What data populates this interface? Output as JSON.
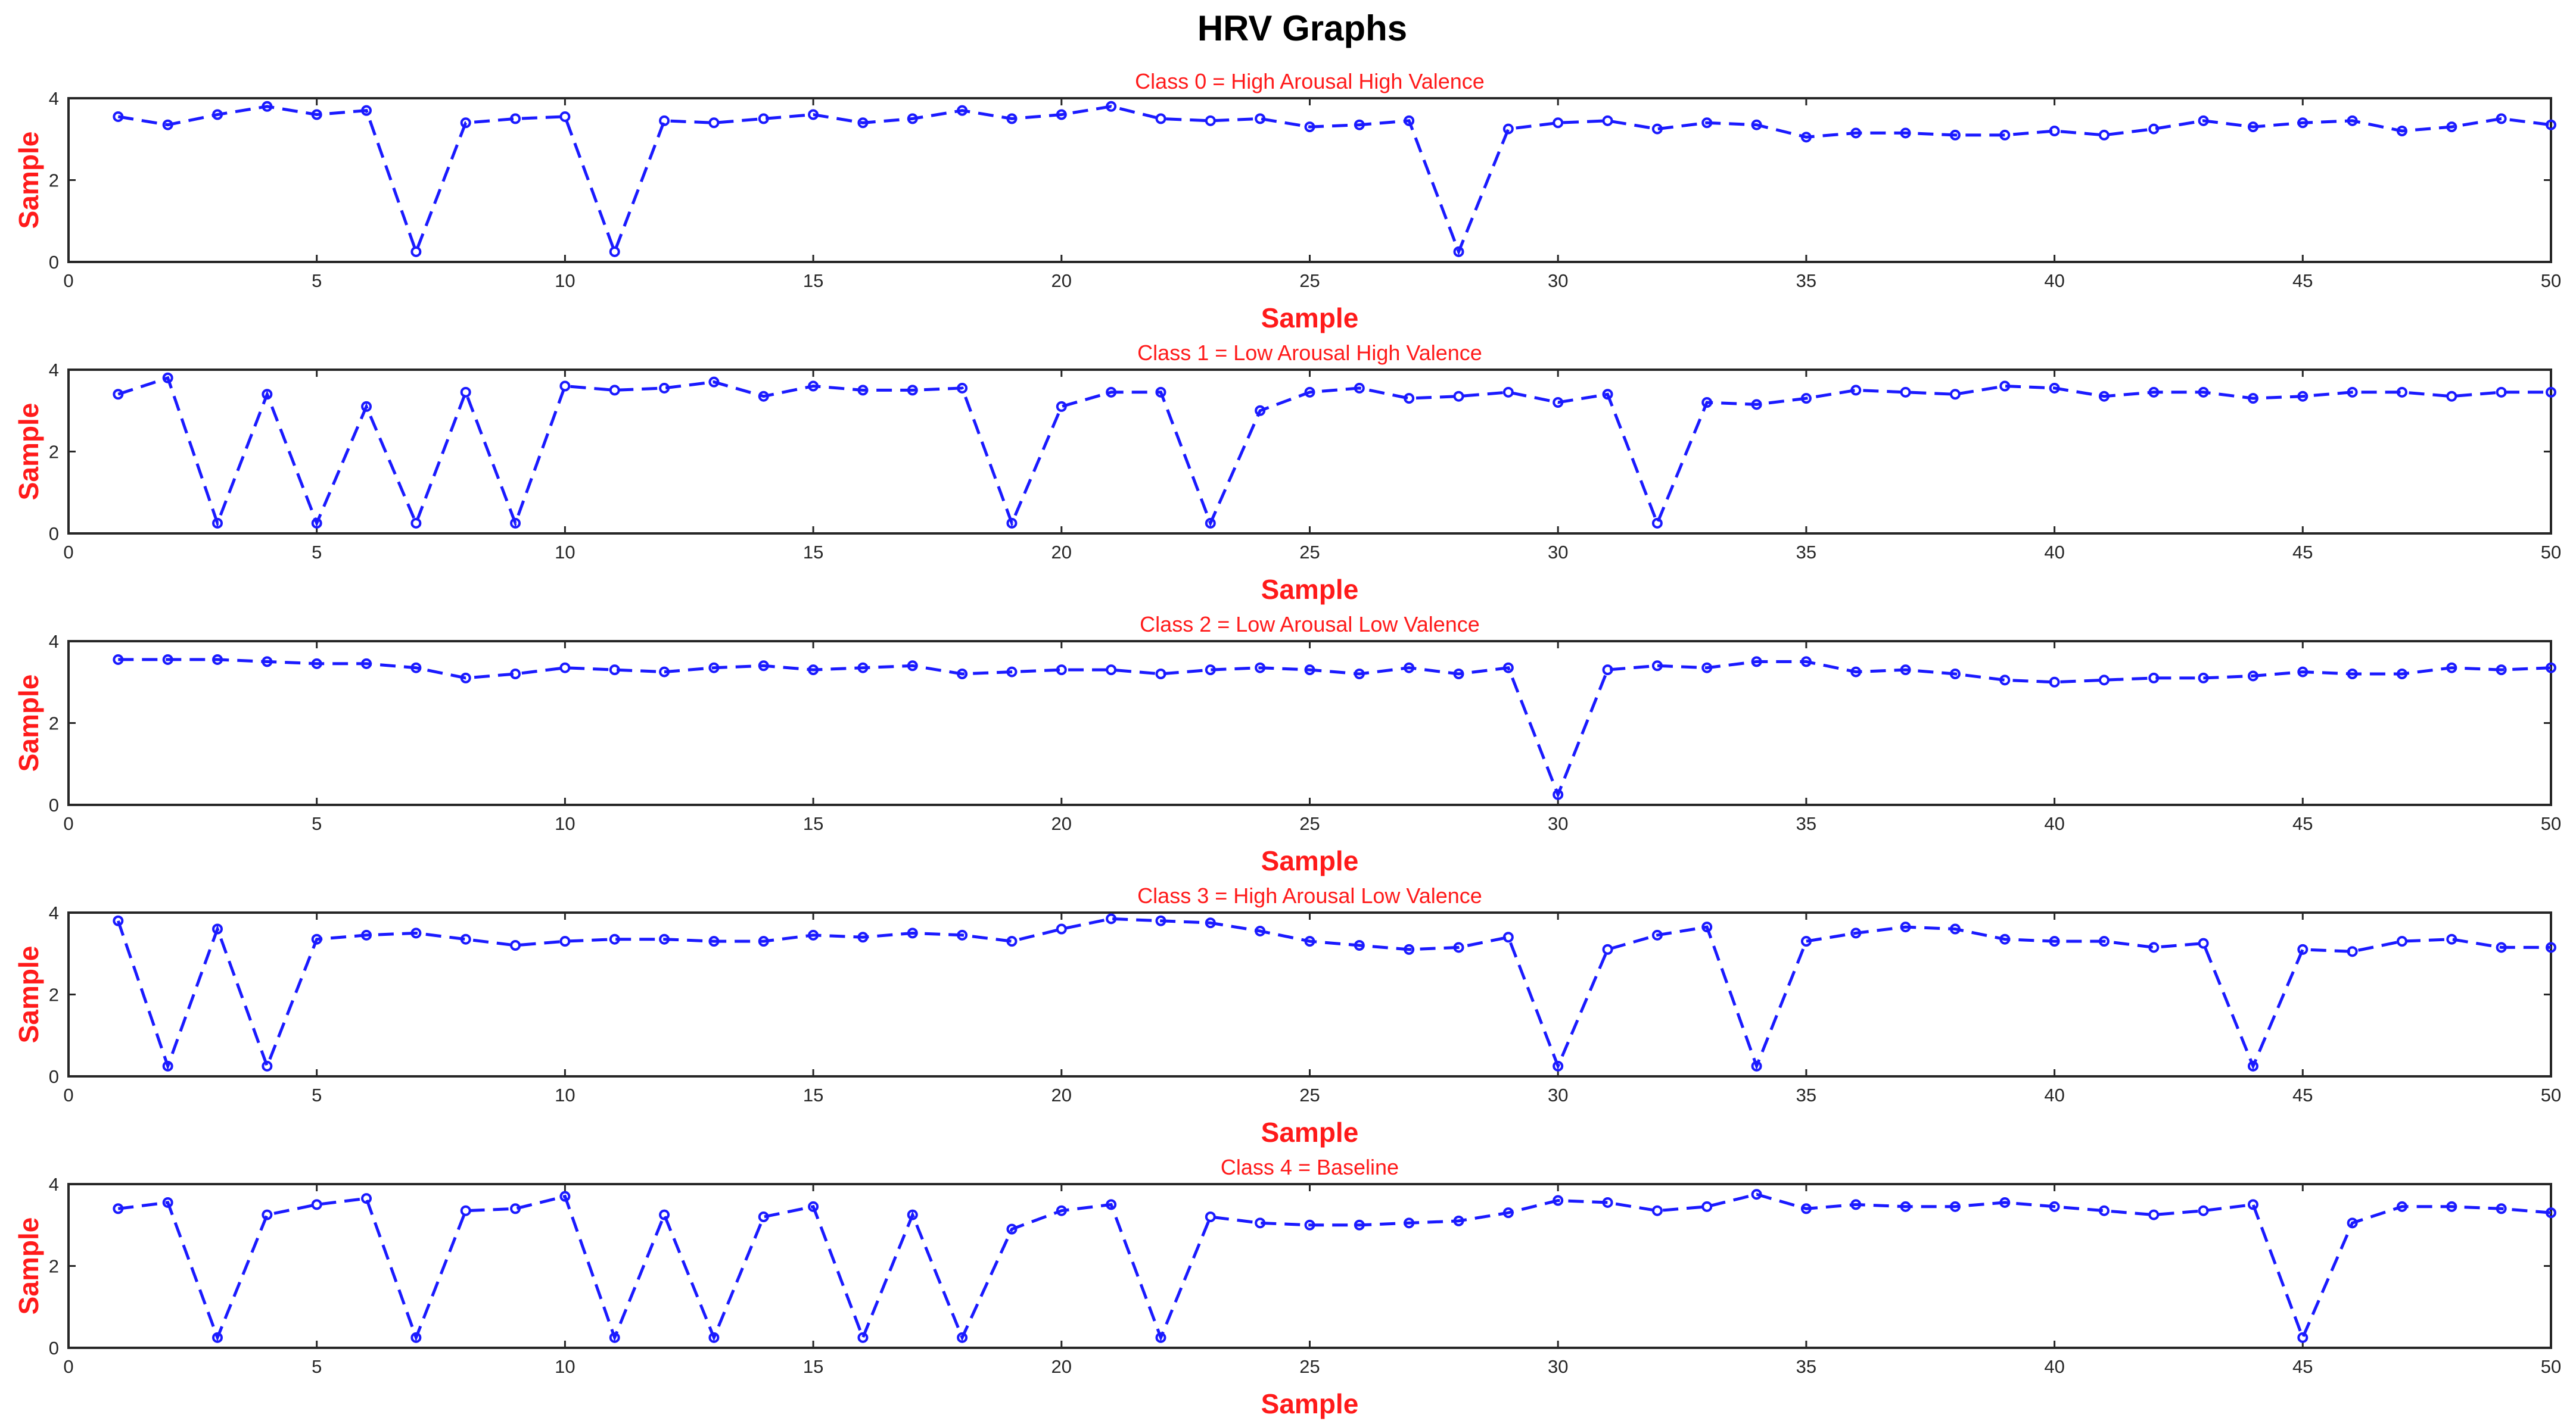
{
  "figure_title": "HRV Graphs",
  "colors": {
    "series": "#1a1aff",
    "axis_text": "#ff1a1a",
    "axes": "#262626"
  },
  "chart_data": [
    {
      "type": "line",
      "title": "Class 0 = High Arousal High Valence",
      "xlabel": "Sample",
      "ylabel": "Sample",
      "xlim": [
        0,
        50
      ],
      "ylim": [
        0,
        4
      ],
      "xticks": [
        0,
        5,
        10,
        15,
        20,
        25,
        30,
        35,
        40,
        45,
        50
      ],
      "yticks": [
        0,
        2,
        4
      ],
      "grid": false,
      "marker": "circle",
      "line_style": "dashed",
      "x": [
        1,
        2,
        3,
        4,
        5,
        6,
        7,
        8,
        9,
        10,
        11,
        12,
        13,
        14,
        15,
        16,
        17,
        18,
        19,
        20,
        21,
        22,
        23,
        24,
        25,
        26,
        27,
        28,
        29,
        30,
        31,
        32,
        33,
        34,
        35,
        36,
        37,
        38,
        39,
        40,
        41,
        42,
        43,
        44,
        45,
        46,
        47,
        48,
        49,
        50
      ],
      "y": [
        3.55,
        3.35,
        3.6,
        3.8,
        3.6,
        3.7,
        0.25,
        3.4,
        3.5,
        3.55,
        0.25,
        3.45,
        3.4,
        3.5,
        3.6,
        3.4,
        3.5,
        3.7,
        3.5,
        3.6,
        3.8,
        3.5,
        3.45,
        3.5,
        3.3,
        3.35,
        3.45,
        0.25,
        3.25,
        3.4,
        3.45,
        3.25,
        3.4,
        3.35,
        3.05,
        3.15,
        3.15,
        3.1,
        3.1,
        3.2,
        3.1,
        3.25,
        3.45,
        3.3,
        3.4,
        3.45,
        3.2,
        3.3,
        3.5,
        3.35
      ]
    },
    {
      "type": "line",
      "title": "Class 1 = Low Arousal High Valence",
      "xlabel": "Sample",
      "ylabel": "Sample",
      "xlim": [
        0,
        50
      ],
      "ylim": [
        0,
        4
      ],
      "xticks": [
        0,
        5,
        10,
        15,
        20,
        25,
        30,
        35,
        40,
        45,
        50
      ],
      "yticks": [
        0,
        2,
        4
      ],
      "grid": false,
      "marker": "circle",
      "line_style": "dashed",
      "x": [
        1,
        2,
        3,
        4,
        5,
        6,
        7,
        8,
        9,
        10,
        11,
        12,
        13,
        14,
        15,
        16,
        17,
        18,
        19,
        20,
        21,
        22,
        23,
        24,
        25,
        26,
        27,
        28,
        29,
        30,
        31,
        32,
        33,
        34,
        35,
        36,
        37,
        38,
        39,
        40,
        41,
        42,
        43,
        44,
        45,
        46,
        47,
        48,
        49,
        50
      ],
      "y": [
        3.4,
        3.8,
        0.25,
        3.4,
        0.25,
        3.1,
        0.25,
        3.45,
        0.25,
        3.6,
        3.5,
        3.55,
        3.7,
        3.35,
        3.6,
        3.5,
        3.5,
        3.55,
        0.25,
        3.1,
        3.45,
        3.45,
        0.25,
        3.0,
        3.45,
        3.55,
        3.3,
        3.35,
        3.45,
        3.2,
        3.4,
        0.25,
        3.2,
        3.15,
        3.3,
        3.5,
        3.45,
        3.4,
        3.6,
        3.55,
        3.35,
        3.45,
        3.45,
        3.3,
        3.35,
        3.45,
        3.45,
        3.35,
        3.45,
        3.45
      ]
    },
    {
      "type": "line",
      "title": "Class 2 = Low Arousal Low Valence",
      "xlabel": "Sample",
      "ylabel": "Sample",
      "xlim": [
        0,
        50
      ],
      "ylim": [
        0,
        4
      ],
      "xticks": [
        0,
        5,
        10,
        15,
        20,
        25,
        30,
        35,
        40,
        45,
        50
      ],
      "yticks": [
        0,
        2,
        4
      ],
      "grid": false,
      "marker": "circle",
      "line_style": "dashed",
      "x": [
        1,
        2,
        3,
        4,
        5,
        6,
        7,
        8,
        9,
        10,
        11,
        12,
        13,
        14,
        15,
        16,
        17,
        18,
        19,
        20,
        21,
        22,
        23,
        24,
        25,
        26,
        27,
        28,
        29,
        30,
        31,
        32,
        33,
        34,
        35,
        36,
        37,
        38,
        39,
        40,
        41,
        42,
        43,
        44,
        45,
        46,
        47,
        48,
        49,
        50
      ],
      "y": [
        3.55,
        3.55,
        3.55,
        3.5,
        3.45,
        3.45,
        3.35,
        3.1,
        3.2,
        3.35,
        3.3,
        3.25,
        3.35,
        3.4,
        3.3,
        3.35,
        3.4,
        3.2,
        3.25,
        3.3,
        3.3,
        3.2,
        3.3,
        3.35,
        3.3,
        3.2,
        3.35,
        3.2,
        3.35,
        0.25,
        3.3,
        3.4,
        3.35,
        3.5,
        3.5,
        3.25,
        3.3,
        3.2,
        3.05,
        3.0,
        3.05,
        3.1,
        3.1,
        3.15,
        3.25,
        3.2,
        3.2,
        3.35,
        3.3,
        3.35
      ]
    },
    {
      "type": "line",
      "title": "Class 3 = High Arousal Low Valence",
      "xlabel": "Sample",
      "ylabel": "Sample",
      "xlim": [
        0,
        50
      ],
      "ylim": [
        0,
        4
      ],
      "xticks": [
        0,
        5,
        10,
        15,
        20,
        25,
        30,
        35,
        40,
        45,
        50
      ],
      "yticks": [
        0,
        2,
        4
      ],
      "grid": false,
      "marker": "circle",
      "line_style": "dashed",
      "x": [
        1,
        2,
        3,
        4,
        5,
        6,
        7,
        8,
        9,
        10,
        11,
        12,
        13,
        14,
        15,
        16,
        17,
        18,
        19,
        20,
        21,
        22,
        23,
        24,
        25,
        26,
        27,
        28,
        29,
        30,
        31,
        32,
        33,
        34,
        35,
        36,
        37,
        38,
        39,
        40,
        41,
        42,
        43,
        44,
        45,
        46,
        47,
        48,
        49,
        50
      ],
      "y": [
        3.8,
        0.25,
        3.6,
        0.25,
        3.35,
        3.45,
        3.5,
        3.35,
        3.2,
        3.3,
        3.35,
        3.35,
        3.3,
        3.3,
        3.45,
        3.4,
        3.5,
        3.45,
        3.3,
        3.6,
        3.85,
        3.8,
        3.75,
        3.55,
        3.3,
        3.2,
        3.1,
        3.15,
        3.4,
        0.25,
        3.1,
        3.45,
        3.65,
        0.25,
        3.3,
        3.5,
        3.65,
        3.6,
        3.35,
        3.3,
        3.3,
        3.15,
        3.25,
        0.25,
        3.1,
        3.05,
        3.3,
        3.35,
        3.15,
        3.15
      ]
    },
    {
      "type": "line",
      "title": "Class 4 = Baseline",
      "xlabel": "Sample",
      "ylabel": "Sample",
      "xlim": [
        0,
        50
      ],
      "ylim": [
        0,
        4
      ],
      "xticks": [
        0,
        5,
        10,
        15,
        20,
        25,
        30,
        35,
        40,
        45,
        50
      ],
      "yticks": [
        0,
        2,
        4
      ],
      "grid": false,
      "marker": "circle",
      "line_style": "dashed",
      "x": [
        1,
        2,
        3,
        4,
        5,
        6,
        7,
        8,
        9,
        10,
        11,
        12,
        13,
        14,
        15,
        16,
        17,
        18,
        19,
        20,
        21,
        22,
        23,
        24,
        25,
        26,
        27,
        28,
        29,
        30,
        31,
        32,
        33,
        34,
        35,
        36,
        37,
        38,
        39,
        40,
        41,
        42,
        43,
        44,
        45,
        46,
        47,
        48,
        49,
        50
      ],
      "y": [
        3.4,
        3.55,
        0.25,
        3.25,
        3.5,
        3.65,
        0.25,
        3.35,
        3.4,
        3.7,
        0.25,
        3.25,
        0.25,
        3.2,
        3.45,
        0.25,
        3.25,
        0.25,
        2.9,
        3.35,
        3.5,
        0.25,
        3.2,
        3.05,
        3.0,
        3.0,
        3.05,
        3.1,
        3.3,
        3.6,
        3.55,
        3.35,
        3.45,
        3.75,
        3.4,
        3.5,
        3.45,
        3.45,
        3.55,
        3.45,
        3.35,
        3.25,
        3.35,
        3.5,
        0.25,
        3.05,
        3.45,
        3.45,
        3.4,
        3.3
      ]
    }
  ]
}
